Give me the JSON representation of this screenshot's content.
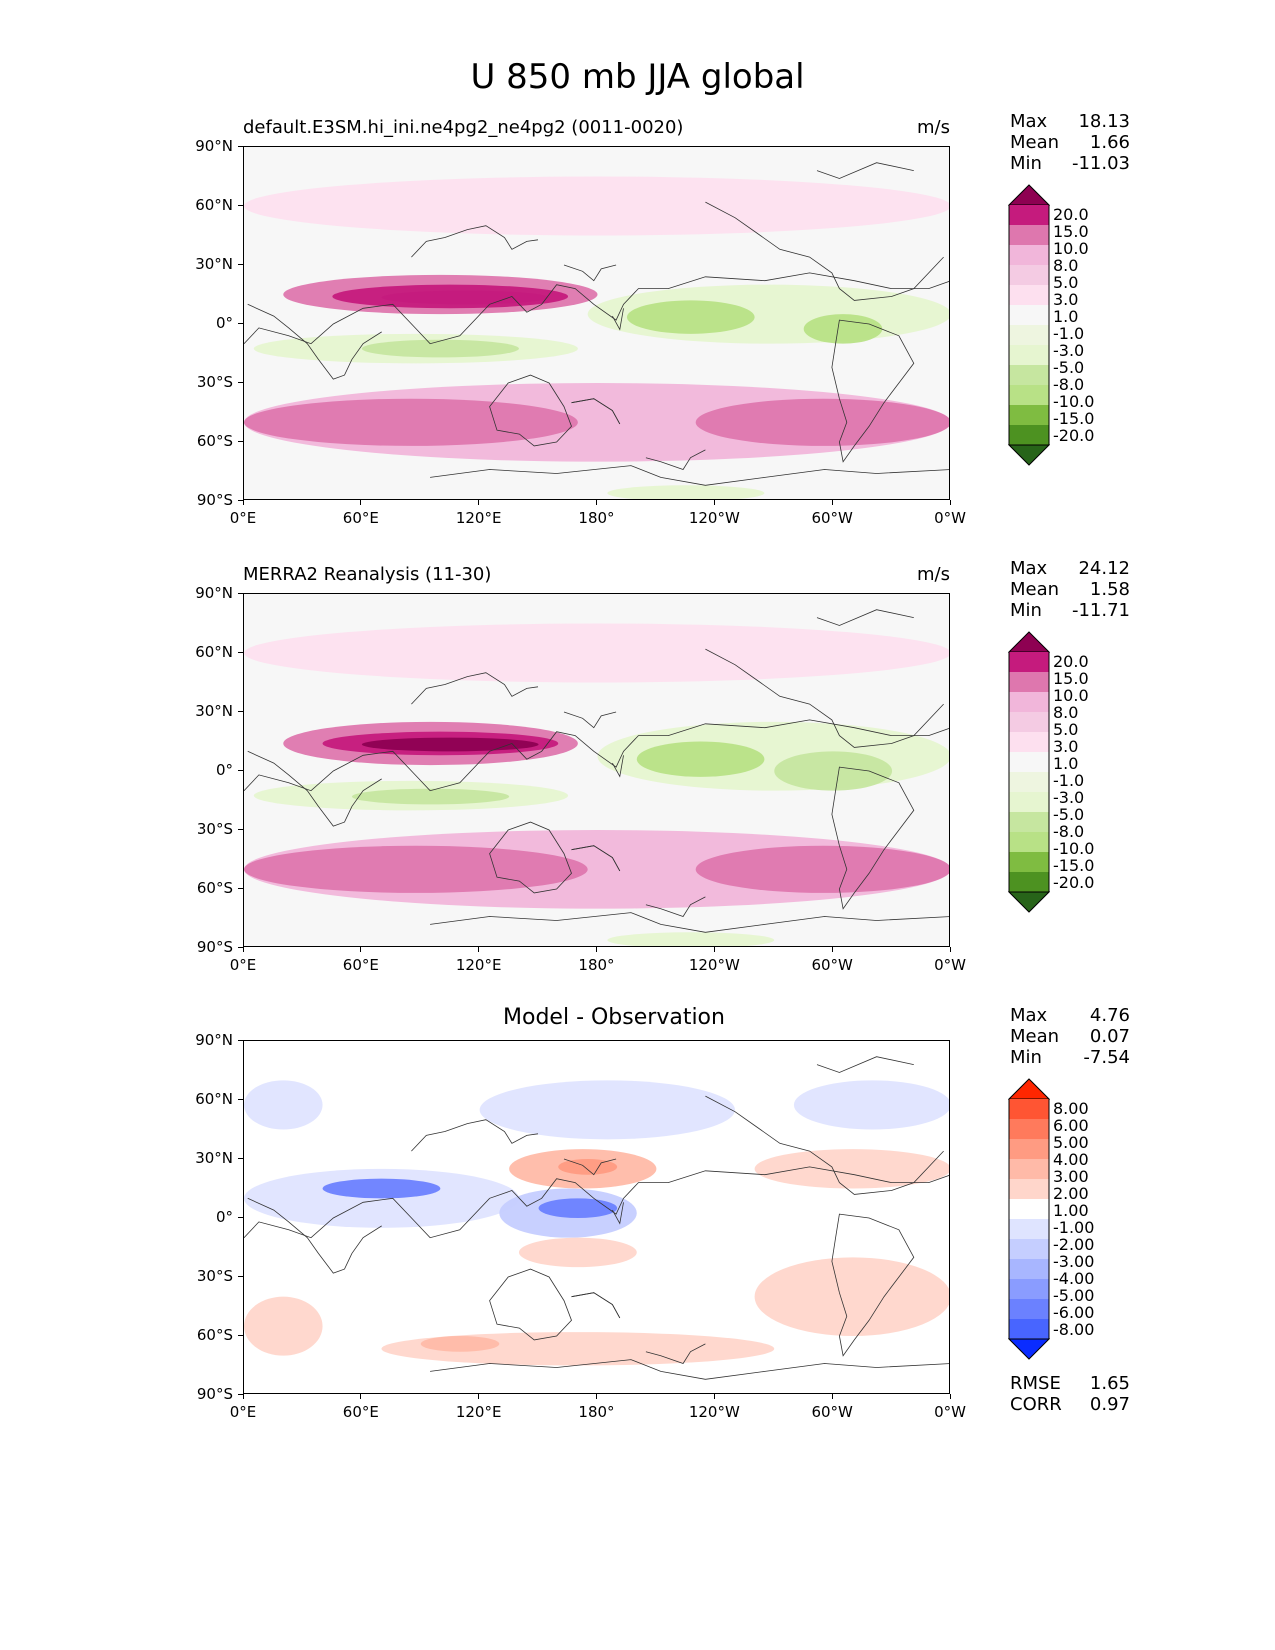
{
  "main_title": "U 850 mb JJA global",
  "panels": [
    {
      "title": "default.E3SM.hi_ini.ne4pg2_ne4pg2 (0011-0020)",
      "units": "m/s",
      "stats": [
        {
          "label": "Max",
          "value": "18.13"
        },
        {
          "label": "Mean",
          "value": "1.66"
        },
        {
          "label": "Min",
          "value": "-11.03"
        }
      ]
    },
    {
      "title": "MERRA2 Reanalysis (11-30)",
      "units": "m/s",
      "stats": [
        {
          "label": "Max",
          "value": "24.12"
        },
        {
          "label": "Mean",
          "value": "1.58"
        },
        {
          "label": "Min",
          "value": "-11.71"
        }
      ]
    },
    {
      "title": "Model - Observation",
      "units": "",
      "stats": [
        {
          "label": "Max",
          "value": "4.76"
        },
        {
          "label": "Mean",
          "value": "0.07"
        },
        {
          "label": "Min",
          "value": "-7.54"
        }
      ],
      "extra_stats": [
        {
          "label": "RMSE",
          "value": "1.65"
        },
        {
          "label": "CORR",
          "value": "0.97"
        }
      ]
    }
  ],
  "colorbars": {
    "field": {
      "levels": [
        "20.0",
        "15.0",
        "10.0",
        "8.0",
        "5.0",
        "3.0",
        "1.0",
        "-1.0",
        "-3.0",
        "-5.0",
        "-8.0",
        "-10.0",
        "-15.0",
        "-20.0"
      ],
      "colors": [
        "#8e0152",
        "#c51b7d",
        "#de77ae",
        "#f1b6da",
        "#f4cbe3",
        "#fde0ef",
        "#f7f7f7",
        "#eef5e0",
        "#e6f5d0",
        "#c6e6a0",
        "#b8e186",
        "#7fbc41",
        "#4d9221",
        "#276419"
      ]
    },
    "diff": {
      "levels": [
        "8.00",
        "6.00",
        "5.00",
        "4.00",
        "3.00",
        "2.00",
        "1.00",
        "-1.00",
        "-2.00",
        "-3.00",
        "-4.00",
        "-5.00",
        "-6.00",
        "-8.00"
      ],
      "colors": [
        "#ff2600",
        "#ff5533",
        "#ff7a5c",
        "#ff9b82",
        "#ffbaa8",
        "#ffd6cb",
        "#ffffff",
        "#dfe4ff",
        "#c5ceff",
        "#a8b6ff",
        "#8a9cff",
        "#6b81ff",
        "#4865ff",
        "#0a2cff"
      ]
    }
  },
  "chart_data": [
    {
      "type": "heatmap",
      "title": "default.E3SM.hi_ini.ne4pg2_ne4pg2 (0011-0020)",
      "units": "m/s",
      "x_ticks": [
        "0°E",
        "60°E",
        "120°E",
        "180°",
        "120°W",
        "60°W",
        "0°W"
      ],
      "y_ticks": [
        "90°N",
        "60°N",
        "30°N",
        "0°",
        "30°S",
        "60°S",
        "90°S"
      ],
      "xlim": [
        0,
        360
      ],
      "ylim": [
        -90,
        90
      ],
      "max": 18.13,
      "mean": 1.66,
      "min": -11.03,
      "regions": [
        {
          "lon": [
            20,
            180
          ],
          "lat": [
            5,
            25
          ],
          "value": 10
        },
        {
          "lon": [
            45,
            165
          ],
          "lat": [
            8,
            20
          ],
          "value": 15
        },
        {
          "lon": [
            70,
            155
          ],
          "lat": [
            10,
            17
          ],
          "value": 18
        },
        {
          "lon": [
            0,
            360
          ],
          "lat": [
            -70,
            -30
          ],
          "value": 8
        },
        {
          "lon": [
            0,
            170
          ],
          "lat": [
            -62,
            -38
          ],
          "value": 12
        },
        {
          "lon": [
            230,
            360
          ],
          "lat": [
            -62,
            -38
          ],
          "value": 12
        },
        {
          "lon": [
            5,
            170
          ],
          "lat": [
            -20,
            -5
          ],
          "value": -4
        },
        {
          "lon": [
            60,
            140
          ],
          "lat": [
            -17,
            -8
          ],
          "value": -8
        },
        {
          "lon": [
            175,
            360
          ],
          "lat": [
            -10,
            20
          ],
          "value": -5
        },
        {
          "lon": [
            195,
            260
          ],
          "lat": [
            -5,
            12
          ],
          "value": -9
        },
        {
          "lon": [
            285,
            325
          ],
          "lat": [
            -10,
            5
          ],
          "value": -9
        },
        {
          "lon": [
            0,
            360
          ],
          "lat": [
            45,
            75
          ],
          "value": 3
        },
        {
          "lon": [
            185,
            265
          ],
          "lat": [
            -90,
            -82
          ],
          "value": -5
        }
      ]
    },
    {
      "type": "heatmap",
      "title": "MERRA2 Reanalysis (11-30)",
      "units": "m/s",
      "x_ticks": [
        "0°E",
        "60°E",
        "120°E",
        "180°",
        "120°W",
        "60°W",
        "0°W"
      ],
      "y_ticks": [
        "90°N",
        "60°N",
        "30°N",
        "0°",
        "30°S",
        "60°S",
        "90°S"
      ],
      "xlim": [
        0,
        360
      ],
      "ylim": [
        -90,
        90
      ],
      "max": 24.12,
      "mean": 1.58,
      "min": -11.71,
      "regions": [
        {
          "lon": [
            20,
            170
          ],
          "lat": [
            3,
            25
          ],
          "value": 10
        },
        {
          "lon": [
            40,
            160
          ],
          "lat": [
            8,
            20
          ],
          "value": 15
        },
        {
          "lon": [
            60,
            150
          ],
          "lat": [
            10,
            17
          ],
          "value": 20
        },
        {
          "lon": [
            0,
            360
          ],
          "lat": [
            -70,
            -30
          ],
          "value": 8
        },
        {
          "lon": [
            0,
            175
          ],
          "lat": [
            -62,
            -38
          ],
          "value": 12
        },
        {
          "lon": [
            230,
            360
          ],
          "lat": [
            -62,
            -38
          ],
          "value": 12
        },
        {
          "lon": [
            5,
            165
          ],
          "lat": [
            -20,
            -5
          ],
          "value": -4
        },
        {
          "lon": [
            55,
            135
          ],
          "lat": [
            -17,
            -9
          ],
          "value": -8
        },
        {
          "lon": [
            180,
            360
          ],
          "lat": [
            -10,
            25
          ],
          "value": -5
        },
        {
          "lon": [
            200,
            265
          ],
          "lat": [
            -3,
            15
          ],
          "value": -10
        },
        {
          "lon": [
            270,
            330
          ],
          "lat": [
            -10,
            10
          ],
          "value": -8
        },
        {
          "lon": [
            0,
            360
          ],
          "lat": [
            45,
            75
          ],
          "value": 3
        },
        {
          "lon": [
            185,
            270
          ],
          "lat": [
            -90,
            -82
          ],
          "value": -5
        }
      ]
    },
    {
      "type": "heatmap",
      "title": "Model - Observation",
      "units": "",
      "x_ticks": [
        "0°E",
        "60°E",
        "120°E",
        "180°",
        "120°W",
        "60°W",
        "0°W"
      ],
      "y_ticks": [
        "90°N",
        "60°N",
        "30°N",
        "0°",
        "30°S",
        "60°S",
        "90°S"
      ],
      "xlim": [
        0,
        360
      ],
      "ylim": [
        -90,
        90
      ],
      "max": 4.76,
      "mean": 0.07,
      "min": -7.54,
      "rmse": 1.65,
      "corr": 0.97,
      "regions": [
        {
          "lon": [
            0,
            140
          ],
          "lat": [
            -5,
            25
          ],
          "value": -2
        },
        {
          "lon": [
            40,
            100
          ],
          "lat": [
            10,
            20
          ],
          "value": -6
        },
        {
          "lon": [
            130,
            200
          ],
          "lat": [
            -10,
            15
          ],
          "value": -3
        },
        {
          "lon": [
            150,
            190
          ],
          "lat": [
            0,
            10
          ],
          "value": -6
        },
        {
          "lon": [
            135,
            210
          ],
          "lat": [
            15,
            35
          ],
          "value": 3
        },
        {
          "lon": [
            160,
            190
          ],
          "lat": [
            22,
            30
          ],
          "value": 4
        },
        {
          "lon": [
            260,
            360
          ],
          "lat": [
            15,
            35
          ],
          "value": 2
        },
        {
          "lon": [
            140,
            200
          ],
          "lat": [
            -25,
            -10
          ],
          "value": 2
        },
        {
          "lon": [
            0,
            40
          ],
          "lat": [
            -70,
            -40
          ],
          "value": 2
        },
        {
          "lon": [
            260,
            360
          ],
          "lat": [
            -60,
            -20
          ],
          "value": 2
        },
        {
          "lon": [
            70,
            270
          ],
          "lat": [
            -75,
            -58
          ],
          "value": 2
        },
        {
          "lon": [
            90,
            130
          ],
          "lat": [
            -68,
            -60
          ],
          "value": 3
        },
        {
          "lon": [
            120,
            250
          ],
          "lat": [
            40,
            70
          ],
          "value": -2
        },
        {
          "lon": [
            280,
            360
          ],
          "lat": [
            45,
            70
          ],
          "value": -2
        },
        {
          "lon": [
            0,
            40
          ],
          "lat": [
            45,
            70
          ],
          "value": -1.5
        }
      ]
    }
  ]
}
